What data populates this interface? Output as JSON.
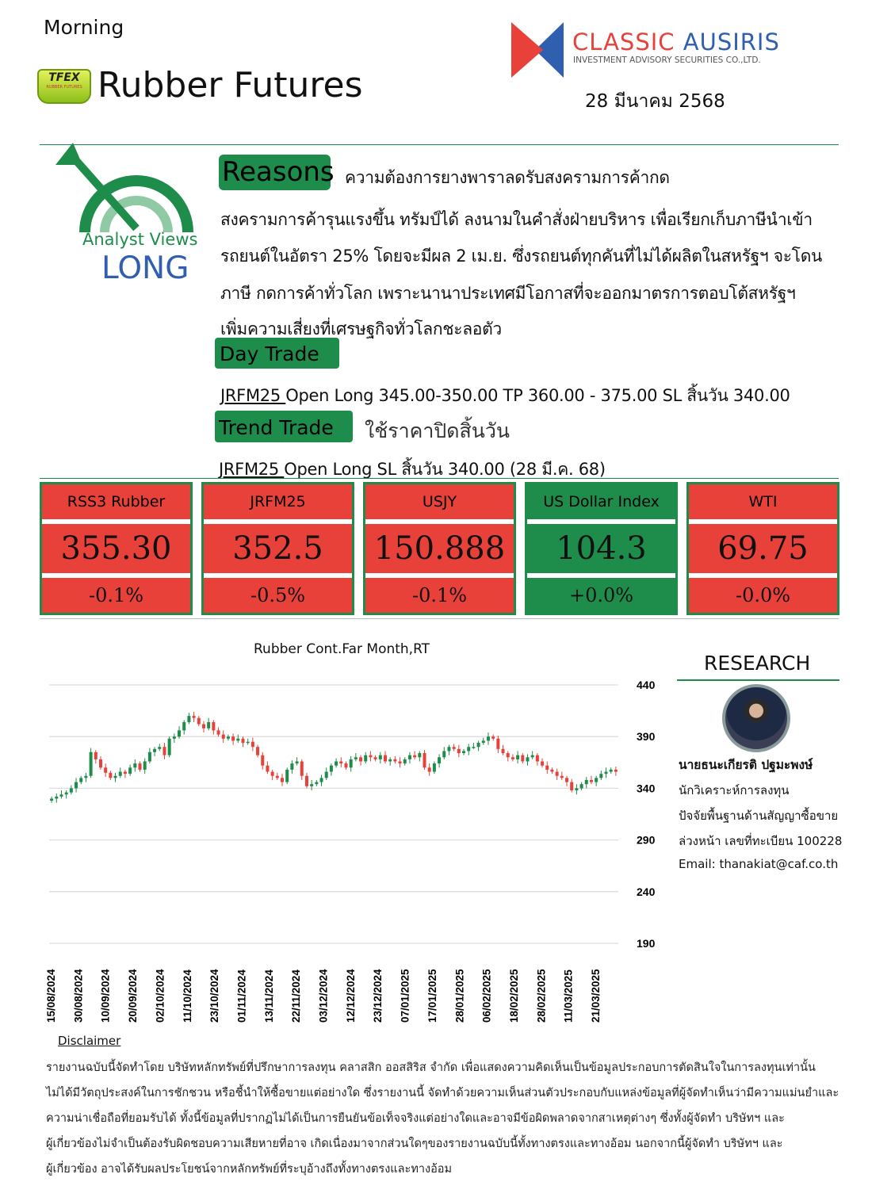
{
  "header": {
    "edition": "Morning",
    "title": "Rubber Futures",
    "badge_text": "TFEX",
    "badge_sub": "RUBBER FUTURES",
    "brand_name_1": "CLASSIC",
    "brand_name_2": "AUSIRIS",
    "brand_sub": "INVESTMENT ADVISORY SECURITIES CO.,LTD.",
    "date": "28 มีนาคม 2568"
  },
  "view": {
    "label": "Analyst Views",
    "stance": "LONG"
  },
  "reasons": {
    "label": "Reasons",
    "headline": "ความต้องการยางพาราลดรับสงครามการค้ากด",
    "lines": [
      "สงครามการค้ารุนแรงขึ้น ทรัมป์ได้ ลงนามในคำสั่งฝ่ายบริหาร เพื่อเรียกเก็บภาษีนำเข้า",
      "รถยนต์ในอัตรา 25% โดยจะมีผล 2 เม.ย. ซึ่งรถยนต์ทุกคันที่ไม่ได้ผลิตในสหรัฐฯ จะโดน",
      "ภาษี กดการค้าทั่วโลก เพราะนานาประเทศมีโอกาสที่จะออกมาตรการตอบโต้สหรัฐฯ",
      "เพิ่มความเสี่ยงที่เศรษฐกิจทั่วโลกชะลอตัว"
    ]
  },
  "day_trade": {
    "label": "Day Trade",
    "symbol": "JRFM25 ",
    "text": "Open Long 345.00-350.00  TP 360.00 - 375.00  SL สิ้นวัน 340.00"
  },
  "trend_trade": {
    "label": "Trend Trade",
    "note": "ใช้ราคาปิดสิ้นวัน",
    "symbol": "JRFM25 ",
    "text": "Open Long SL สิ้นวัน 340.00 (28 มี.ค. 68)"
  },
  "tickers": [
    {
      "name": "RSS3 Rubber",
      "value": "355.30",
      "change": "-0.1%",
      "color": "#e8413a"
    },
    {
      "name": "JRFM25",
      "value": "352.5",
      "change": "-0.5%",
      "color": "#e8413a"
    },
    {
      "name": "USJY",
      "value": "150.888",
      "change": "-0.1%",
      "color": "#e8413a"
    },
    {
      "name": "US Dollar Index",
      "value": "104.3",
      "change": "+0.0%",
      "color": "#1e8c4a"
    },
    {
      "name": "WTI",
      "value": "69.75",
      "change": "-0.0%",
      "color": "#e8413a"
    }
  ],
  "chart_data": {
    "type": "candlestick",
    "title": "Rubber Cont.Far Month,RT",
    "ylim": [
      190,
      440
    ],
    "yticks": [
      440,
      390,
      340,
      290,
      240,
      190
    ],
    "grid": true,
    "up_color": "#1e8c4a",
    "down_color": "#e8413a",
    "xticks": [
      "15/08/2024",
      "30/08/2024",
      "10/09/2024",
      "20/09/2024",
      "02/10/2024",
      "11/10/2024",
      "23/10/2024",
      "01/11/2024",
      "13/11/2024",
      "22/11/2024",
      "03/12/2024",
      "12/12/2024",
      "23/12/2024",
      "07/01/2025",
      "17/01/2025",
      "28/01/2025",
      "06/02/2025",
      "18/02/2025",
      "28/02/2025",
      "11/03/2025",
      "21/03/2025"
    ],
    "close": [
      330,
      332,
      334,
      336,
      340,
      346,
      350,
      352,
      375,
      368,
      360,
      355,
      350,
      352,
      356,
      354,
      360,
      364,
      358,
      366,
      375,
      378,
      380,
      372,
      388,
      390,
      396,
      404,
      410,
      408,
      402,
      398,
      404,
      396,
      392,
      388,
      390,
      386,
      388,
      384,
      385,
      380,
      372,
      362,
      356,
      352,
      350,
      346,
      358,
      364,
      366,
      352,
      342,
      344,
      346,
      350,
      356,
      362,
      366,
      364,
      360,
      368,
      370,
      366,
      372,
      370,
      368,
      372,
      366,
      368,
      366,
      364,
      368,
      372,
      370,
      374,
      360,
      356,
      364,
      370,
      376,
      380,
      378,
      374,
      376,
      380,
      380,
      384,
      386,
      390,
      388,
      378,
      374,
      370,
      368,
      372,
      366,
      370,
      372,
      366,
      362,
      358,
      356,
      352,
      350,
      346,
      338,
      340,
      344,
      348,
      346,
      350,
      354,
      356,
      358,
      356
    ]
  },
  "research": {
    "title": "RESEARCH",
    "name": "นายธนะเกียรติ ปฐมะพงษ์",
    "role": "นักวิเคราะห์การลงทุน",
    "line2": "ปัจจัยพื้นฐานด้านสัญญาซื้อขาย",
    "line3": "ล่วงหน้า เลขที่ทะเบียน 100228",
    "email": "Email: thanakiat@caf.co.th"
  },
  "disclaimer": {
    "title": "Disclaimer ",
    "lines": [
      "รายงานฉบับนี้จัดทำโดย บริษัทหลักทรัพย์ที่ปรึกษาการลงทุน คลาสสิก ออสสิริส จำกัด เพื่อแสดงความคิดเห็นเป็นข้อมูลประกอบการตัดสินใจในการลงทุนเท่านั้น",
      "ไม่ได้มีวัตถุประสงค์ในการชักชวน หรือชี้นำให้ซื้อขายแต่อย่างใด ซึ่งรายงานนี้ จัดทำด้วยความเห็นส่วนตัวประกอบกับแหล่งข้อมูลที่ผู้จัดทำเห็นว่ามีความแม่นยำและ",
      "ความน่าเชื่อถือที่ยอมรับได้ ทั้งนี้ข้อมูลที่ปรากฏไม่ได้เป็นการยืนยันข้อเท็จจริงแต่อย่างใดและอาจมีข้อผิดพลาดจากสาเหตุต่างๆ ซึ่งทั้งผู้จัดทำ บริษัทฯ และ",
      "ผู้เกี่ยวข้องไม่จำเป็นต้องรับผิดชอบความเสียหายที่อาจ เกิดเนื่องมาจากส่วนใดๆของรายงานฉบับนี้ทั้งทางตรงและทางอ้อม นอกจากนี้ผู้จัดทำ บริษัทฯ และ",
      "ผู้เกี่ยวข้อง อาจได้รับผลประโยชน์จากหลักทรัพย์ที่ระบุอ้างถึงทั้งทางตรงและทางอ้อม"
    ]
  }
}
